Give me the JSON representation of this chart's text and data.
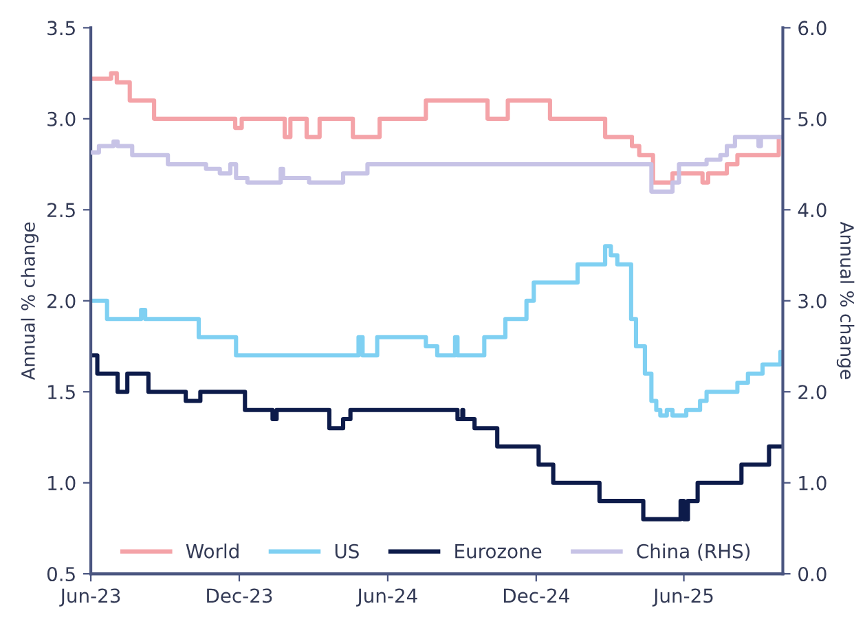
{
  "chart_data": {
    "type": "step",
    "ylabel": "Annual % change",
    "y2label": "Annual % change",
    "xlim": [
      "2023-06-01",
      "2025-10-01"
    ],
    "xticks": [
      {
        "value": "2023-06-01",
        "label": "Jun-23"
      },
      {
        "value": "2023-12-01",
        "label": "Dec-23"
      },
      {
        "value": "2024-06-01",
        "label": "Jun-24"
      },
      {
        "value": "2024-12-01",
        "label": "Dec-24"
      },
      {
        "value": "2025-06-01",
        "label": "Jun-25"
      }
    ],
    "ylim": [
      0.5,
      3.5
    ],
    "yticks": [
      {
        "value": 0.5,
        "label": "0.5"
      },
      {
        "value": 1.0,
        "label": "1.0"
      },
      {
        "value": 1.5,
        "label": "1.5"
      },
      {
        "value": 2.0,
        "label": "2.0"
      },
      {
        "value": 2.5,
        "label": "2.5"
      },
      {
        "value": 3.0,
        "label": "3.0"
      },
      {
        "value": 3.5,
        "label": "3.5"
      }
    ],
    "y2lim": [
      0.0,
      6.0
    ],
    "y2ticks": [
      {
        "value": 0.0,
        "label": "0.0"
      },
      {
        "value": 1.0,
        "label": "1.0"
      },
      {
        "value": 2.0,
        "label": "2.0"
      },
      {
        "value": 3.0,
        "label": "3.0"
      },
      {
        "value": 4.0,
        "label": "4.0"
      },
      {
        "value": 5.0,
        "label": "5.0"
      },
      {
        "value": 6.0,
        "label": "6.0"
      }
    ],
    "grid": false,
    "legend": "bottom",
    "line_style": "solid",
    "marker": "none",
    "series": [
      {
        "name": "World",
        "color": "#f4a3a8",
        "x": [
          "2023-06-01",
          "2023-06-26",
          "2023-07-03",
          "2023-07-19",
          "2023-08-18",
          "2023-11-26",
          "2023-12-04",
          "2024-01-26",
          "2024-02-02",
          "2024-02-22",
          "2024-03-09",
          "2024-04-19",
          "2024-05-22",
          "2024-07-18",
          "2024-10-02",
          "2024-10-27",
          "2024-12-18",
          "2025-02-24",
          "2025-03-29",
          "2025-04-07",
          "2025-04-24",
          "2025-05-18",
          "2025-06-24",
          "2025-07-01",
          "2025-07-24",
          "2025-08-06",
          "2025-09-26",
          "2025-10-01"
        ],
        "values": [
          3.22,
          3.25,
          3.2,
          3.1,
          3.0,
          2.95,
          3.0,
          2.9,
          3.0,
          2.9,
          3.0,
          2.9,
          3.0,
          3.1,
          3.0,
          3.1,
          3.0,
          2.9,
          2.85,
          2.8,
          2.65,
          2.7,
          2.65,
          2.7,
          2.75,
          2.8,
          2.9,
          2.9
        ]
      },
      {
        "name": "US",
        "color": "#7fd0f2",
        "x": [
          "2023-06-01",
          "2023-06-21",
          "2023-08-02",
          "2023-08-07",
          "2023-10-12",
          "2023-11-27",
          "2024-04-26",
          "2024-05-01",
          "2024-05-19",
          "2024-07-18",
          "2024-08-01",
          "2024-08-23",
          "2024-08-26",
          "2024-09-28",
          "2024-10-24",
          "2024-11-19",
          "2024-11-28",
          "2025-01-21",
          "2025-02-24",
          "2025-03-03",
          "2025-03-11",
          "2025-03-28",
          "2025-04-03",
          "2025-04-14",
          "2025-04-22",
          "2025-04-28",
          "2025-05-03",
          "2025-05-11",
          "2025-05-18",
          "2025-06-04",
          "2025-06-21",
          "2025-06-29",
          "2025-08-06",
          "2025-08-19",
          "2025-09-06",
          "2025-09-28",
          "2025-10-01"
        ],
        "values": [
          2.0,
          1.9,
          1.95,
          1.9,
          1.8,
          1.7,
          1.8,
          1.7,
          1.8,
          1.75,
          1.7,
          1.8,
          1.7,
          1.8,
          1.9,
          2.0,
          2.1,
          2.2,
          2.3,
          2.25,
          2.2,
          1.9,
          1.75,
          1.6,
          1.45,
          1.4,
          1.37,
          1.4,
          1.37,
          1.4,
          1.45,
          1.5,
          1.55,
          1.6,
          1.65,
          1.72,
          1.72
        ]
      },
      {
        "name": "Eurozone",
        "color": "#0d1b4a",
        "x": [
          "2023-06-01",
          "2023-06-09",
          "2023-07-04",
          "2023-07-16",
          "2023-08-11",
          "2023-09-26",
          "2023-10-14",
          "2023-12-08",
          "2024-01-11",
          "2024-01-16",
          "2024-03-21",
          "2024-04-07",
          "2024-04-16",
          "2024-08-26",
          "2024-09-01",
          "2024-09-02",
          "2024-09-16",
          "2024-10-14",
          "2024-12-04",
          "2024-12-22",
          "2025-02-17",
          "2025-04-12",
          "2025-05-28",
          "2025-06-01",
          "2025-06-06",
          "2025-06-18",
          "2025-08-11",
          "2025-09-14",
          "2025-10-01"
        ],
        "values": [
          1.7,
          1.6,
          1.5,
          1.6,
          1.5,
          1.45,
          1.5,
          1.4,
          1.35,
          1.4,
          1.3,
          1.35,
          1.4,
          1.35,
          1.4,
          1.35,
          1.3,
          1.2,
          1.1,
          1.0,
          0.9,
          0.8,
          0.9,
          0.8,
          0.9,
          1.0,
          1.1,
          1.2,
          1.2
        ]
      },
      {
        "name": "China (RHS)",
        "color": "#c7c3e6",
        "axis": "y2",
        "x": [
          "2023-06-01",
          "2023-06-11",
          "2023-06-29",
          "2023-07-04",
          "2023-07-22",
          "2023-09-04",
          "2023-10-21",
          "2023-11-07",
          "2023-11-20",
          "2023-11-27",
          "2023-12-11",
          "2024-01-21",
          "2024-01-24",
          "2024-02-25",
          "2024-04-07",
          "2024-05-07",
          "2025-04-22",
          "2025-05-18",
          "2025-05-26",
          "2025-06-29",
          "2025-07-16",
          "2025-07-24",
          "2025-08-03",
          "2025-09-01",
          "2025-09-04",
          "2025-10-01"
        ],
        "values": [
          4.63,
          4.7,
          4.75,
          4.7,
          4.6,
          4.5,
          4.45,
          4.4,
          4.5,
          4.35,
          4.3,
          4.45,
          4.35,
          4.3,
          4.4,
          4.5,
          4.2,
          4.3,
          4.5,
          4.55,
          4.6,
          4.7,
          4.8,
          4.7,
          4.8,
          4.8
        ]
      }
    ]
  }
}
